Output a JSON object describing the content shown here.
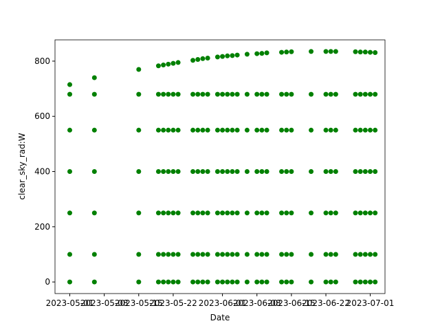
{
  "chart_data": {
    "type": "scatter",
    "xlabel": "Date",
    "ylabel": "clear_sky_rad:W",
    "color": "#008000",
    "xlim": [
      "2023-04-28",
      "2023-07-04"
    ],
    "xticks": [
      "2023-05-01",
      "2023-05-08",
      "2023-05-15",
      "2023-05-22",
      "2023-06-01",
      "2023-06-08",
      "2023-06-15",
      "2023-06-22",
      "2023-07-01"
    ],
    "ylim": [
      -42,
      877
    ],
    "yticks": [
      0,
      200,
      400,
      600,
      800
    ],
    "x": [
      "2023-05-01",
      "2023-05-01",
      "2023-05-01",
      "2023-05-01",
      "2023-05-01",
      "2023-05-01",
      "2023-05-01",
      "2023-05-06",
      "2023-05-06",
      "2023-05-06",
      "2023-05-06",
      "2023-05-06",
      "2023-05-06",
      "2023-05-06",
      "2023-05-15",
      "2023-05-15",
      "2023-05-15",
      "2023-05-15",
      "2023-05-15",
      "2023-05-15",
      "2023-05-15",
      "2023-05-19",
      "2023-05-19",
      "2023-05-19",
      "2023-05-19",
      "2023-05-19",
      "2023-05-19",
      "2023-05-19",
      "2023-05-20",
      "2023-05-20",
      "2023-05-20",
      "2023-05-20",
      "2023-05-20",
      "2023-05-20",
      "2023-05-20",
      "2023-05-21",
      "2023-05-21",
      "2023-05-21",
      "2023-05-21",
      "2023-05-21",
      "2023-05-21",
      "2023-05-21",
      "2023-05-22",
      "2023-05-22",
      "2023-05-22",
      "2023-05-22",
      "2023-05-22",
      "2023-05-22",
      "2023-05-22",
      "2023-05-23",
      "2023-05-23",
      "2023-05-23",
      "2023-05-23",
      "2023-05-23",
      "2023-05-23",
      "2023-05-23",
      "2023-05-26",
      "2023-05-26",
      "2023-05-26",
      "2023-05-26",
      "2023-05-26",
      "2023-05-26",
      "2023-05-26",
      "2023-05-27",
      "2023-05-27",
      "2023-05-27",
      "2023-05-27",
      "2023-05-27",
      "2023-05-27",
      "2023-05-27",
      "2023-05-28",
      "2023-05-28",
      "2023-05-28",
      "2023-05-28",
      "2023-05-28",
      "2023-05-28",
      "2023-05-28",
      "2023-05-29",
      "2023-05-29",
      "2023-05-29",
      "2023-05-29",
      "2023-05-29",
      "2023-05-29",
      "2023-05-29",
      "2023-05-31",
      "2023-05-31",
      "2023-05-31",
      "2023-05-31",
      "2023-05-31",
      "2023-05-31",
      "2023-05-31",
      "2023-06-01",
      "2023-06-01",
      "2023-06-01",
      "2023-06-01",
      "2023-06-01",
      "2023-06-01",
      "2023-06-01",
      "2023-06-02",
      "2023-06-02",
      "2023-06-02",
      "2023-06-02",
      "2023-06-02",
      "2023-06-02",
      "2023-06-02",
      "2023-06-03",
      "2023-06-03",
      "2023-06-03",
      "2023-06-03",
      "2023-06-03",
      "2023-06-03",
      "2023-06-03",
      "2023-06-04",
      "2023-06-04",
      "2023-06-04",
      "2023-06-04",
      "2023-06-04",
      "2023-06-04",
      "2023-06-04",
      "2023-06-06",
      "2023-06-06",
      "2023-06-06",
      "2023-06-06",
      "2023-06-06",
      "2023-06-06",
      "2023-06-06",
      "2023-06-08",
      "2023-06-08",
      "2023-06-08",
      "2023-06-08",
      "2023-06-08",
      "2023-06-08",
      "2023-06-08",
      "2023-06-09",
      "2023-06-09",
      "2023-06-09",
      "2023-06-09",
      "2023-06-09",
      "2023-06-09",
      "2023-06-09",
      "2023-06-10",
      "2023-06-10",
      "2023-06-10",
      "2023-06-10",
      "2023-06-10",
      "2023-06-10",
      "2023-06-10",
      "2023-06-13",
      "2023-06-13",
      "2023-06-13",
      "2023-06-13",
      "2023-06-13",
      "2023-06-13",
      "2023-06-13",
      "2023-06-14",
      "2023-06-14",
      "2023-06-14",
      "2023-06-14",
      "2023-06-14",
      "2023-06-14",
      "2023-06-14",
      "2023-06-15",
      "2023-06-15",
      "2023-06-15",
      "2023-06-15",
      "2023-06-15",
      "2023-06-15",
      "2023-06-15",
      "2023-06-19",
      "2023-06-19",
      "2023-06-19",
      "2023-06-19",
      "2023-06-19",
      "2023-06-19",
      "2023-06-19",
      "2023-06-22",
      "2023-06-22",
      "2023-06-22",
      "2023-06-22",
      "2023-06-22",
      "2023-06-22",
      "2023-06-22",
      "2023-06-23",
      "2023-06-23",
      "2023-06-23",
      "2023-06-23",
      "2023-06-23",
      "2023-06-23",
      "2023-06-23",
      "2023-06-24",
      "2023-06-24",
      "2023-06-24",
      "2023-06-24",
      "2023-06-24",
      "2023-06-24",
      "2023-06-24",
      "2023-06-28",
      "2023-06-28",
      "2023-06-28",
      "2023-06-28",
      "2023-06-28",
      "2023-06-28",
      "2023-06-28",
      "2023-06-29",
      "2023-06-29",
      "2023-06-29",
      "2023-06-29",
      "2023-06-29",
      "2023-06-29",
      "2023-06-29",
      "2023-06-30",
      "2023-06-30",
      "2023-06-30",
      "2023-06-30",
      "2023-06-30",
      "2023-06-30",
      "2023-06-30",
      "2023-07-01",
      "2023-07-01",
      "2023-07-01",
      "2023-07-01",
      "2023-07-01",
      "2023-07-01",
      "2023-07-01",
      "2023-07-02",
      "2023-07-02",
      "2023-07-02",
      "2023-07-02",
      "2023-07-02",
      "2023-07-02",
      "2023-07-02"
    ],
    "values": [
      0,
      100,
      250,
      400,
      550,
      680,
      715,
      0,
      100,
      250,
      400,
      550,
      680,
      740,
      0,
      100,
      250,
      400,
      550,
      680,
      770,
      0,
      100,
      250,
      400,
      550,
      680,
      783,
      0,
      100,
      250,
      400,
      550,
      680,
      786,
      0,
      100,
      250,
      400,
      550,
      680,
      789,
      0,
      100,
      250,
      400,
      550,
      680,
      792,
      0,
      100,
      250,
      400,
      550,
      680,
      795,
      0,
      100,
      250,
      400,
      550,
      680,
      803,
      0,
      100,
      250,
      400,
      550,
      680,
      806,
      0,
      100,
      250,
      400,
      550,
      680,
      809,
      0,
      100,
      250,
      400,
      550,
      680,
      811,
      0,
      100,
      250,
      400,
      550,
      680,
      815,
      0,
      100,
      250,
      400,
      550,
      680,
      817,
      0,
      100,
      250,
      400,
      550,
      680,
      819,
      0,
      100,
      250,
      400,
      550,
      680,
      820,
      0,
      100,
      250,
      400,
      550,
      680,
      822,
      0,
      100,
      250,
      400,
      550,
      680,
      825,
      0,
      100,
      250,
      400,
      550,
      680,
      827,
      0,
      100,
      250,
      400,
      550,
      680,
      828,
      0,
      100,
      250,
      400,
      550,
      680,
      830,
      0,
      100,
      250,
      400,
      550,
      680,
      832,
      0,
      100,
      250,
      400,
      550,
      680,
      833,
      0,
      100,
      250,
      400,
      550,
      680,
      834,
      0,
      100,
      250,
      400,
      550,
      680,
      835,
      0,
      100,
      250,
      400,
      550,
      680,
      835,
      0,
      100,
      250,
      400,
      550,
      680,
      835,
      0,
      100,
      250,
      400,
      550,
      680,
      835,
      0,
      100,
      250,
      400,
      550,
      680,
      834,
      0,
      100,
      250,
      400,
      550,
      680,
      833,
      0,
      100,
      250,
      400,
      550,
      680,
      833,
      0,
      100,
      250,
      400,
      550,
      680,
      832,
      0,
      100,
      250,
      400,
      550,
      680,
      831
    ]
  }
}
